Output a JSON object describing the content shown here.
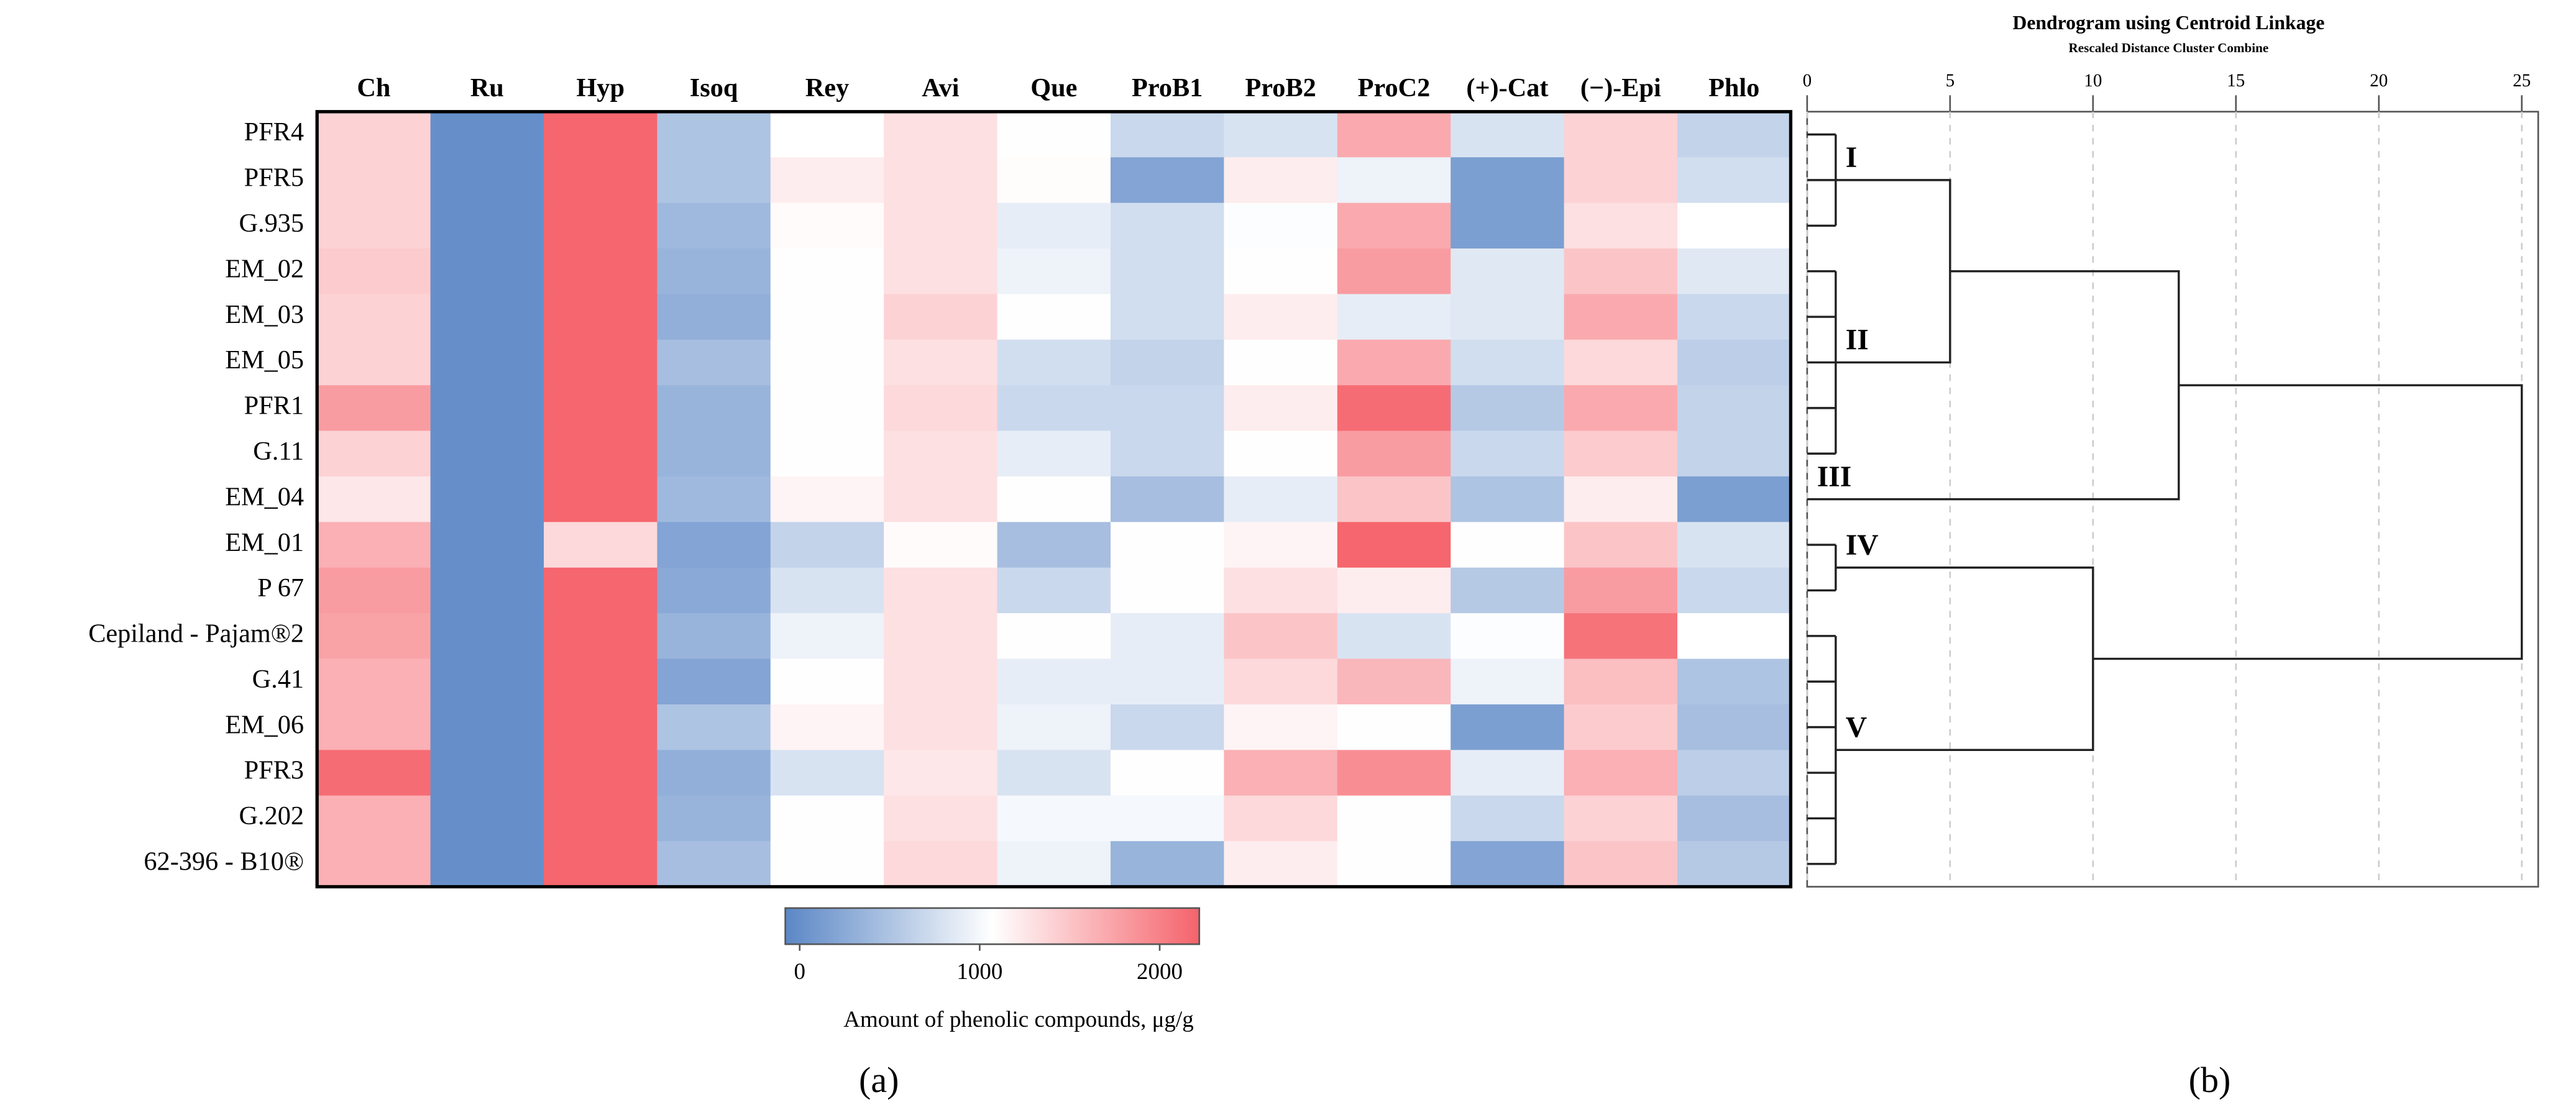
{
  "chart_data": [
    {
      "type": "heatmap",
      "columns": [
        "Ch",
        "Ru",
        "Hyp",
        "Isoq",
        "Rey",
        "Avi",
        "Que",
        "ProB1",
        "ProB2",
        "ProC2",
        "(+)-Cat",
        "(−)-Epi",
        "Phlo"
      ],
      "rows": [
        "PFR4",
        "PFR5",
        "G.935",
        "EM_02",
        "EM_03",
        "EM_05",
        "PFR1",
        "G.11",
        "EM_04",
        "EM_01",
        "P 67",
        "Cepiland - Pajam®2",
        "G.41",
        "EM_06",
        "PFR3",
        "G.202",
        "62-396 - B10®"
      ],
      "values": [
        [
          1400,
          0,
          2200,
          500,
          1070,
          1300,
          1080,
          700,
          800,
          1700,
          800,
          1400,
          650
        ],
        [
          1400,
          0,
          2200,
          500,
          1200,
          1300,
          1090,
          200,
          1200,
          950,
          150,
          1400,
          750
        ],
        [
          1400,
          0,
          2200,
          400,
          1100,
          1300,
          900,
          750,
          1050,
          1700,
          150,
          1300,
          1070
        ],
        [
          1450,
          0,
          2200,
          350,
          1080,
          1300,
          950,
          750,
          1080,
          1800,
          850,
          1500,
          850
        ],
        [
          1400,
          0,
          2200,
          300,
          1080,
          1400,
          1080,
          750,
          1200,
          900,
          850,
          1700,
          700
        ],
        [
          1400,
          0,
          2200,
          450,
          1080,
          1300,
          750,
          650,
          1080,
          1700,
          750,
          1350,
          600
        ],
        [
          1800,
          0,
          2200,
          350,
          1080,
          1350,
          700,
          700,
          1200,
          2150,
          550,
          1700,
          650
        ],
        [
          1400,
          0,
          2200,
          350,
          1080,
          1300,
          900,
          700,
          1080,
          1800,
          700,
          1450,
          650
        ],
        [
          1250,
          0,
          2200,
          400,
          1150,
          1300,
          1080,
          450,
          900,
          1500,
          500,
          1200,
          150
        ],
        [
          1650,
          0,
          1350,
          200,
          650,
          1100,
          450,
          1080,
          1150,
          2200,
          1080,
          1500,
          800
        ],
        [
          1800,
          0,
          2200,
          250,
          800,
          1300,
          700,
          1080,
          1300,
          1200,
          550,
          1800,
          700
        ],
        [
          1750,
          0,
          2200,
          350,
          950,
          1300,
          1080,
          900,
          1500,
          800,
          1050,
          2100,
          1070
        ],
        [
          1650,
          0,
          2200,
          200,
          1080,
          1300,
          900,
          900,
          1350,
          1600,
          950,
          1550,
          500
        ],
        [
          1650,
          0,
          2200,
          500,
          1150,
          1300,
          950,
          700,
          1150,
          1080,
          150,
          1450,
          450
        ],
        [
          2150,
          0,
          2200,
          300,
          800,
          1250,
          800,
          1080,
          1650,
          1900,
          900,
          1650,
          600
        ],
        [
          1650,
          0,
          2200,
          350,
          1080,
          1300,
          1000,
          1000,
          1350,
          1080,
          700,
          1400,
          450
        ],
        [
          1650,
          0,
          2200,
          450,
          1080,
          1350,
          950,
          350,
          1200,
          1080,
          200,
          1500,
          550
        ]
      ],
      "zlim": [
        -80,
        2220
      ],
      "zticks": [
        0,
        1000,
        2000
      ],
      "colors": [
        "#5b87c6",
        "#ffffff",
        "#f5636b"
      ],
      "colorbar_label": "Amount of phenolic compounds, μg/g",
      "panel_label": "(a)"
    },
    {
      "type": "dendrogram",
      "title": "Dendrogram using Centroid Linkage",
      "subtitle": "Rescaled Distance Cluster Combine",
      "xlim": [
        0,
        25
      ],
      "xticks": [
        0,
        5,
        10,
        15,
        20,
        25
      ],
      "grid": true,
      "clusters": [
        {
          "label": "I",
          "rows": [
            0,
            2
          ],
          "height": 1
        },
        {
          "label": "II",
          "rows": [
            3,
            7
          ],
          "height": 1
        },
        {
          "label": "III",
          "rows": [
            8,
            8
          ]
        },
        {
          "label": "IV",
          "rows": [
            9,
            10
          ],
          "height": 1
        },
        {
          "label": "V",
          "rows": [
            11,
            16
          ],
          "height": 1
        }
      ],
      "merges": [
        {
          "children": [
            0,
            1
          ],
          "height": 5
        },
        {
          "children": [
            5,
            2
          ],
          "height": 13
        },
        {
          "children": [
            3,
            4
          ],
          "height": 10
        },
        {
          "children": [
            6,
            7
          ],
          "height": 25
        }
      ],
      "panel_label": "(b)"
    }
  ]
}
